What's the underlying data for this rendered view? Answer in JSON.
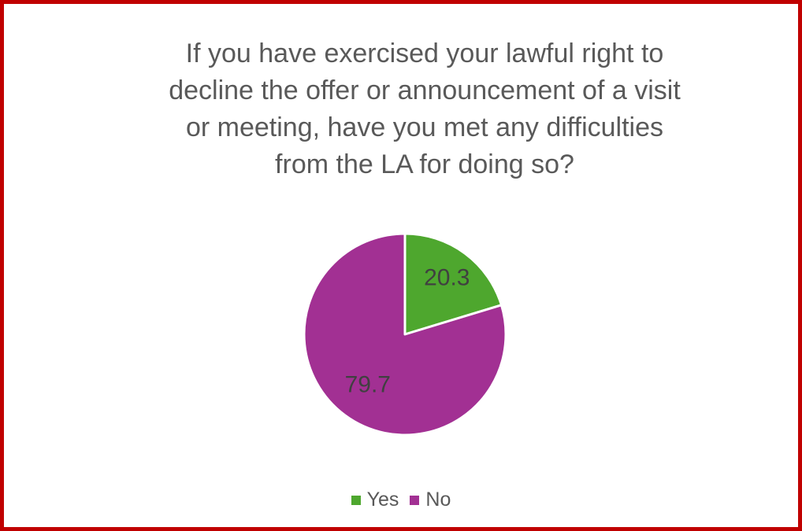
{
  "palette": {
    "frame_border": "#c00000",
    "background": "#ffffff",
    "title_text": "#595959",
    "data_label_text": "#404040",
    "legend_text": "#595959",
    "slice_separator": "#ffffff",
    "series_yes_green": "#4EA72E",
    "series_no_purple": "#A23093"
  },
  "chart_data": {
    "type": "pie",
    "title": "If you have exercised your lawful right to decline the offer or announcement of a visit or meeting, have you met any difficulties from the LA for doing so?",
    "title_display": "If you have exercised your lawful right to\ndecline the offer or announcement of a visit\nor meeting, have you met any difficulties\nfrom the LA for doing so?",
    "categories": [
      "Yes",
      "No"
    ],
    "values": [
      20.3,
      79.7
    ],
    "slices": [
      {
        "label": "Yes",
        "value": 20.3,
        "data_label": "20.3",
        "color": "#4EA72E"
      },
      {
        "label": "No",
        "value": 79.7,
        "data_label": "79.7",
        "color": "#A23093"
      }
    ],
    "legend": {
      "position": "bottom",
      "entries": [
        "Yes",
        "No"
      ]
    },
    "layout": {
      "start_angle_deg": 0,
      "clockwise": true,
      "label_radius_fraction": [
        0.7,
        0.62
      ],
      "grid": false
    }
  }
}
